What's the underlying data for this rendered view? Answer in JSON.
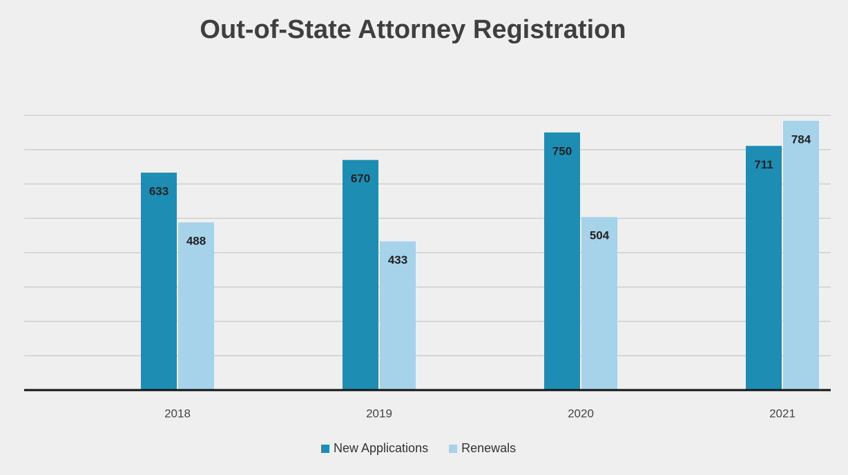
{
  "chart_data": {
    "type": "bar",
    "title": "Out-of-State Attorney Registration",
    "categories": [
      "2018",
      "2019",
      "2020",
      "2021"
    ],
    "series": [
      {
        "name": "New Applications",
        "color": "#1e8db3",
        "values": [
          633,
          670,
          750,
          711
        ]
      },
      {
        "name": "Renewals",
        "color": "#a6d2ea",
        "values": [
          488,
          433,
          504,
          784
        ]
      }
    ],
    "ylim": [
      0,
      800
    ],
    "yticks": [
      0,
      100,
      200,
      300,
      400,
      500,
      600,
      700,
      800
    ],
    "grid": true,
    "legend": "bottom"
  }
}
